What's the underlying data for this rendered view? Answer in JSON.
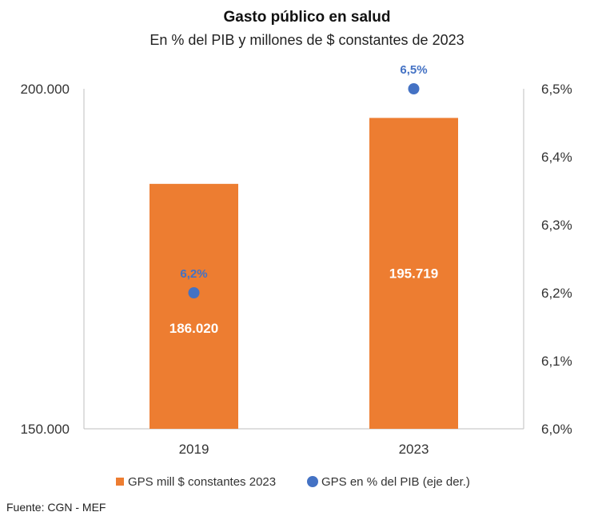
{
  "chart_data": {
    "type": "bar",
    "title": "Gasto público  en salud",
    "subtitle": "En % del PIB y millones de $ constantes de 2023",
    "categories": [
      "2019",
      "2023"
    ],
    "series": [
      {
        "name": "GPS mill $ constantes 2023",
        "type": "bar",
        "axis": "left",
        "values": [
          186020,
          195719
        ],
        "labels": [
          "186.020",
          "195.719"
        ],
        "color": "#ED7D31"
      },
      {
        "name": "GPS en % del PIB (eje der.)",
        "type": "scatter",
        "axis": "right",
        "values": [
          6.2,
          6.5
        ],
        "labels": [
          "6,2%",
          "6,5%"
        ],
        "color": "#4472C4"
      }
    ],
    "ylim_left": [
      150000,
      200000
    ],
    "yticks_left": [
      "150.000",
      "200.000"
    ],
    "ylim_right": [
      6.0,
      6.5
    ],
    "yticks_right": [
      "6,0%",
      "6,1%",
      "6,2%",
      "6,3%",
      "6,4%",
      "6,5%"
    ],
    "grid": false,
    "legend_position": "bottom",
    "source": "Fuente: CGN - MEF"
  }
}
